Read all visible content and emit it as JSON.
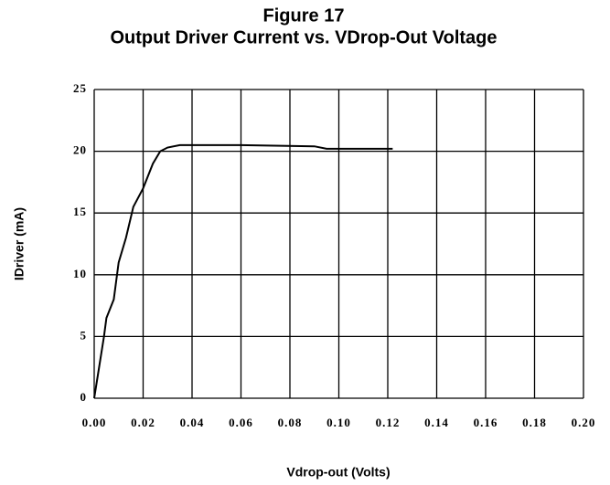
{
  "chart_data": {
    "type": "line",
    "title": "Figure 17",
    "subtitle": "Output Driver Current vs. VDrop-Out Voltage",
    "x_label": "Vdrop-out  (Volts)",
    "y_label": "IDriver  (mA)",
    "x": [
      0,
      0.002,
      0.004,
      0.005,
      0.008,
      0.01,
      0.013,
      0.016,
      0.02,
      0.024,
      0.027,
      0.03,
      0.035,
      0.06,
      0.09,
      0.095,
      0.122
    ],
    "series": [
      {
        "color": "#000000",
        "values": [
          0,
          2.5,
          5,
          6.5,
          8,
          11,
          13,
          15.5,
          17,
          19,
          20,
          20.3,
          20.5,
          20.5,
          20.4,
          20.2,
          20.2
        ]
      }
    ],
    "xlim": [
      0,
      0.2
    ],
    "xticks": [
      {
        "value": 0,
        "label": "0.00"
      },
      0.02,
      0.04,
      0.06,
      0.08,
      {
        "value": 0.1,
        "label": "0.10"
      },
      0.12,
      0.14,
      0.16,
      0.18,
      {
        "value": 0.2,
        "label": "0.20"
      }
    ],
    "ylim": [
      0,
      25
    ],
    "yticks": [
      0,
      5,
      10,
      15,
      20,
      25
    ],
    "grid": true
  }
}
